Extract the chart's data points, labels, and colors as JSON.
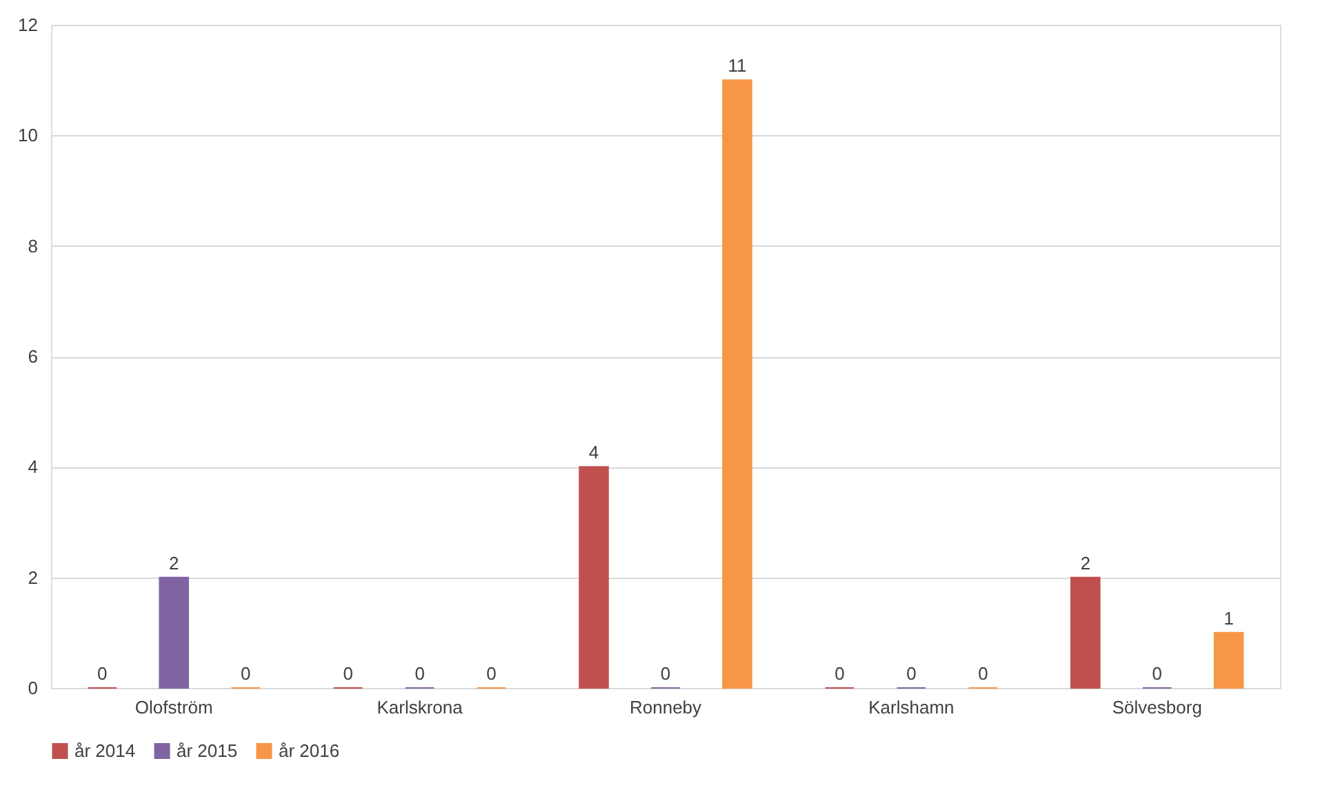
{
  "chart_data": {
    "type": "bar",
    "categories": [
      "Olofström",
      "Karlskrona",
      "Ronneby",
      "Karlshamn",
      "Sölvesborg"
    ],
    "series": [
      {
        "name": "år 2014",
        "color": "#c0504d",
        "values": [
          0,
          0,
          4,
          0,
          2
        ]
      },
      {
        "name": "år 2015",
        "color": "#8064a2",
        "values": [
          2,
          0,
          0,
          0,
          0
        ]
      },
      {
        "name": "år 2016",
        "color": "#f79646",
        "values": [
          0,
          0,
          11,
          0,
          1
        ]
      }
    ],
    "ylim": [
      0,
      12
    ],
    "yticks": [
      0,
      2,
      4,
      6,
      8,
      10,
      12
    ],
    "grid": "y",
    "legend": "bottom",
    "data_labels": true
  }
}
